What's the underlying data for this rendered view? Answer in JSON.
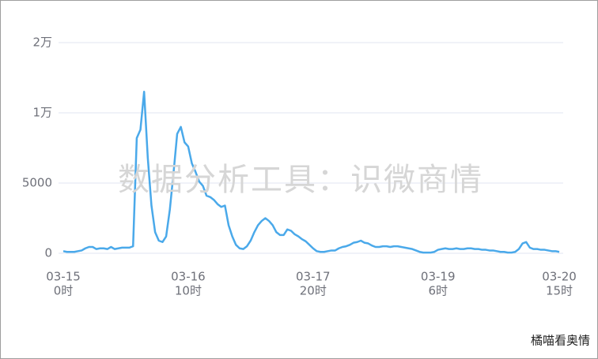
{
  "chart_data": {
    "type": "line",
    "watermark": "数据分析工具：识微商情",
    "corner_text": "橘喵看奥情",
    "categories": [
      [
        "03-15",
        "0时"
      ],
      null,
      null,
      null,
      null,
      null,
      null,
      null,
      null,
      null,
      null,
      null,
      null,
      null,
      null,
      null,
      null,
      null,
      null,
      null,
      null,
      null,
      null,
      null,
      null,
      null,
      null,
      null,
      null,
      null,
      null,
      null,
      null,
      null,
      [
        "03-16",
        "10时"
      ],
      null,
      null,
      null,
      null,
      null,
      null,
      null,
      null,
      null,
      null,
      null,
      null,
      null,
      null,
      null,
      null,
      null,
      null,
      null,
      null,
      null,
      null,
      null,
      null,
      null,
      null,
      null,
      null,
      null,
      null,
      null,
      null,
      null,
      [
        "03-17",
        "20时"
      ],
      null,
      null,
      null,
      null,
      null,
      null,
      null,
      null,
      null,
      null,
      null,
      null,
      null,
      null,
      null,
      null,
      null,
      null,
      null,
      null,
      null,
      null,
      null,
      null,
      null,
      null,
      null,
      null,
      null,
      null,
      null,
      null,
      null,
      [
        "03-19",
        "6时"
      ],
      null,
      null,
      null,
      null,
      null,
      null,
      null,
      null,
      null,
      null,
      null,
      null,
      null,
      null,
      null,
      null,
      null,
      null,
      null,
      null,
      null,
      null,
      null,
      null,
      null,
      null,
      null,
      null,
      null,
      null,
      null,
      null,
      [
        "03-20",
        "15时"
      ]
    ],
    "series": [
      {
        "color": "#4aa9ea",
        "values": [
          150,
          100,
          100,
          100,
          150,
          200,
          350,
          450,
          450,
          300,
          350,
          350,
          300,
          450,
          300,
          350,
          400,
          400,
          400,
          500,
          8200,
          8800,
          13000,
          6800,
          3400,
          1500,
          900,
          800,
          1200,
          3100,
          5700,
          8500,
          9000,
          7900,
          7600,
          6400,
          5800,
          5100,
          4800,
          4100,
          4000,
          3800,
          3500,
          3300,
          3400,
          2000,
          1200,
          600,
          350,
          300,
          500,
          900,
          1500,
          2000,
          2300,
          2500,
          2300,
          2000,
          1500,
          1300,
          1300,
          1700,
          1600,
          1350,
          1200,
          1000,
          850,
          600,
          350,
          150,
          100,
          100,
          150,
          200,
          200,
          350,
          450,
          500,
          600,
          750,
          800,
          900,
          750,
          700,
          550,
          450,
          450,
          500,
          500,
          450,
          500,
          500,
          450,
          400,
          350,
          300,
          200,
          100,
          50,
          50,
          50,
          100,
          250,
          300,
          350,
          300,
          300,
          350,
          300,
          300,
          350,
          350,
          300,
          300,
          250,
          250,
          200,
          200,
          150,
          100,
          100,
          50,
          50,
          100,
          300,
          700,
          800,
          400,
          300,
          300,
          250,
          250,
          200,
          150,
          150,
          100
        ]
      }
    ],
    "ylim": [
      0,
      20000
    ],
    "yticks": [
      0,
      5000,
      {
        "value": 10000,
        "label": "1万"
      },
      {
        "value": 20000,
        "label": "2万"
      }
    ],
    "grid": true
  }
}
